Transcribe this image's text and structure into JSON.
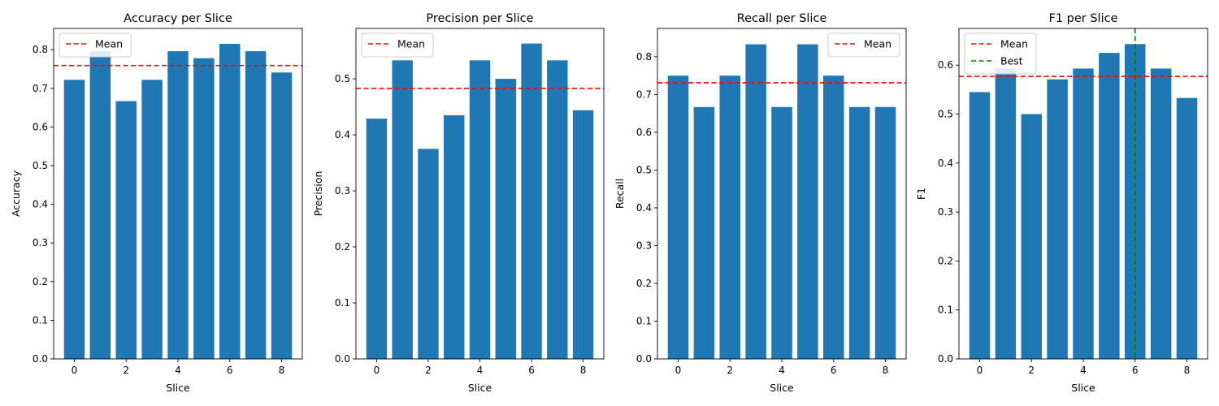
{
  "figure": {
    "background": "#ffffff",
    "bar_color": "#1f77b4",
    "mean_color": "#ff0000",
    "best_color": "#008000"
  },
  "chart_data": [
    {
      "type": "bar",
      "title": "Accuracy per Slice",
      "xlabel": "Slice",
      "ylabel": "Accuracy",
      "categories": [
        0,
        1,
        2,
        3,
        4,
        5,
        6,
        7,
        8
      ],
      "values": [
        0.722,
        0.796,
        0.667,
        0.722,
        0.796,
        0.778,
        0.815,
        0.796,
        0.741
      ],
      "ylim": [
        0,
        0.855
      ],
      "xlim": [
        -0.8,
        8.8
      ],
      "yticks": [
        "0.0",
        "0.1",
        "0.2",
        "0.3",
        "0.4",
        "0.5",
        "0.6",
        "0.7",
        "0.8"
      ],
      "xticks": [
        "0",
        "2",
        "4",
        "6",
        "8"
      ],
      "mean": 0.759,
      "mean_label": "Mean",
      "legend": [
        "Mean"
      ],
      "legend_position": "upper-left",
      "grid": false
    },
    {
      "type": "bar",
      "title": "Precision per Slice",
      "xlabel": "Slice",
      "ylabel": "Precision",
      "categories": [
        0,
        1,
        2,
        3,
        4,
        5,
        6,
        7,
        8
      ],
      "values": [
        0.429,
        0.533,
        0.375,
        0.435,
        0.533,
        0.5,
        0.563,
        0.533,
        0.444
      ],
      "ylim": [
        0,
        0.59
      ],
      "xlim": [
        -0.8,
        8.8
      ],
      "yticks": [
        "0.0",
        "0.1",
        "0.2",
        "0.3",
        "0.4",
        "0.5"
      ],
      "xticks": [
        "0",
        "2",
        "4",
        "6",
        "8"
      ],
      "mean": 0.483,
      "mean_label": "Mean",
      "legend": [
        "Mean"
      ],
      "legend_position": "upper-left",
      "grid": false
    },
    {
      "type": "bar",
      "title": "Recall per Slice",
      "xlabel": "Slice",
      "ylabel": "Recall",
      "categories": [
        0,
        1,
        2,
        3,
        4,
        5,
        6,
        7,
        8
      ],
      "values": [
        0.75,
        0.667,
        0.75,
        0.833,
        0.667,
        0.833,
        0.75,
        0.667,
        0.667
      ],
      "ylim": [
        0,
        0.875
      ],
      "xlim": [
        -0.8,
        8.8
      ],
      "yticks": [
        "0.0",
        "0.1",
        "0.2",
        "0.3",
        "0.4",
        "0.5",
        "0.6",
        "0.7",
        "0.8"
      ],
      "xticks": [
        "0",
        "2",
        "4",
        "6",
        "8"
      ],
      "mean": 0.731,
      "mean_label": "Mean",
      "legend": [
        "Mean"
      ],
      "legend_position": "upper-right",
      "grid": false
    },
    {
      "type": "bar",
      "title": "F1 per Slice",
      "xlabel": "Slice",
      "ylabel": "F1",
      "categories": [
        0,
        1,
        2,
        3,
        4,
        5,
        6,
        7,
        8
      ],
      "values": [
        0.545,
        0.593,
        0.5,
        0.571,
        0.593,
        0.625,
        0.643,
        0.593,
        0.533
      ],
      "ylim": [
        0,
        0.675
      ],
      "xlim": [
        -0.8,
        8.8
      ],
      "yticks": [
        "0.0",
        "0.1",
        "0.2",
        "0.3",
        "0.4",
        "0.5",
        "0.6"
      ],
      "xticks": [
        "0",
        "2",
        "4",
        "6",
        "8"
      ],
      "mean": 0.577,
      "mean_label": "Mean",
      "best": 6,
      "best_label": "Best",
      "legend": [
        "Mean",
        "Best"
      ],
      "legend_position": "upper-left",
      "grid": false
    }
  ]
}
